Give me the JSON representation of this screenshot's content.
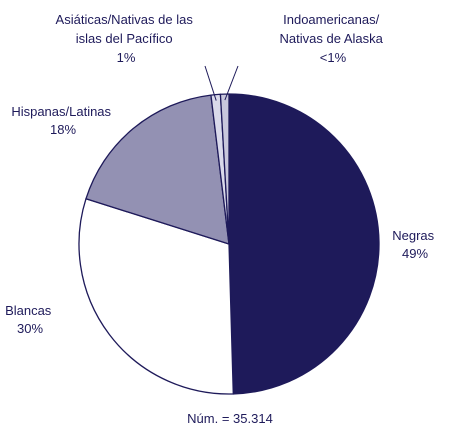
{
  "chart_data": {
    "type": "pie",
    "title": "",
    "categories": [
      "Negras",
      "Blancas",
      "Hispanas/Latinas",
      "Asiáticas/Nativas de las islas del Pacífico",
      "Indoamericanas/ Nativas de Alaska"
    ],
    "values": [
      49,
      30,
      18,
      1,
      0.9
    ],
    "labels": [
      {
        "lines": [
          "Negras",
          "49%"
        ]
      },
      {
        "lines": [
          "Blancas",
          "30%"
        ]
      },
      {
        "lines": [
          "Hispanas/Latinas",
          "18%"
        ]
      },
      {
        "lines": [
          "Asiáticas/Nativas de las",
          "islas del Pacífico",
          "1%"
        ]
      },
      {
        "lines": [
          "Indoamericanas/",
          "Nativas de Alaska",
          "<1%"
        ]
      }
    ],
    "colors": [
      "#1e1a5a",
      "#ffffff",
      "#9391b3",
      "#d9d9ea",
      "#c8c7dc"
    ],
    "stroke_color": "#1e1a5a",
    "footnote": "Núm. = 35.314"
  }
}
